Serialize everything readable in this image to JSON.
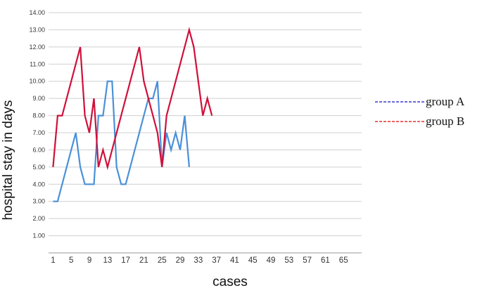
{
  "chart_data": {
    "type": "line",
    "title": "",
    "xlabel": "cases",
    "ylabel": "hospital stay in days",
    "ylim": [
      0,
      14
    ],
    "yticks": [
      "1.00",
      "2.00",
      "3.00",
      "4.00",
      "5.00",
      "6.00",
      "7.00",
      "8.00",
      "9.00",
      "10.00",
      "11.00",
      "12.00",
      "13.00",
      "14.00"
    ],
    "xlim": [
      0,
      69
    ],
    "xticks": [
      "1",
      "5",
      "9",
      "13",
      "17",
      "21",
      "25",
      "29",
      "33",
      "37",
      "41",
      "45",
      "49",
      "53",
      "57",
      "61",
      "65"
    ],
    "grid": "horizontal",
    "legend_position": "right",
    "series": [
      {
        "name": "group A",
        "color": "#4a90d9",
        "legend_color": "#3a3acd",
        "x": [
          1,
          2,
          5,
          6,
          7,
          8,
          9,
          10,
          11,
          12,
          13,
          14,
          15,
          16,
          17,
          18,
          19,
          20,
          21,
          22,
          23,
          24,
          25,
          26,
          27,
          28,
          29,
          30,
          31
        ],
        "y": [
          3,
          3,
          6,
          7,
          5,
          4,
          4,
          4,
          8,
          8,
          10,
          10,
          5,
          4,
          4,
          5,
          6,
          7,
          8,
          9,
          9,
          10,
          5,
          7,
          6,
          7,
          6,
          8,
          5
        ]
      },
      {
        "name": "group B",
        "color": "#d0103a",
        "legend_color": "#e03030",
        "x": [
          1,
          2,
          3,
          7,
          8,
          9,
          10,
          11,
          12,
          13,
          20,
          21,
          24,
          25,
          26,
          31,
          32,
          33,
          34,
          35,
          36
        ],
        "y": [
          5,
          8,
          8,
          12,
          8,
          7,
          9,
          5,
          6,
          5,
          12,
          10,
          7,
          5,
          8,
          13,
          12,
          10,
          8,
          9,
          8
        ]
      }
    ]
  }
}
